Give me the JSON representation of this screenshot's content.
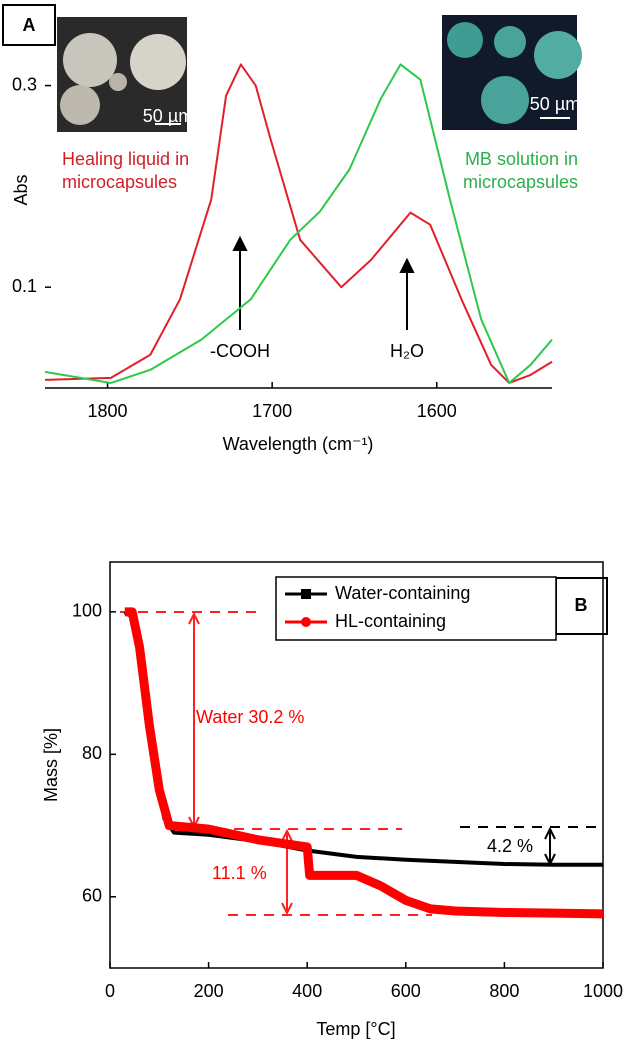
{
  "chart_data": [
    {
      "type": "line",
      "panel_label": "A",
      "xlabel": "Wavelength (cm⁻¹)",
      "ylabel": "Abs",
      "xlim": [
        1838,
        1530
      ],
      "xticks": [
        1800,
        1700,
        1600
      ],
      "ylim": [
        0,
        0.37
      ],
      "yticks": [
        0.1,
        0.3
      ],
      "series": [
        {
          "name": "Healing liquid in microcapsules",
          "color": "#e0202a",
          "x": [
            1838,
            1798,
            1774,
            1756,
            1737,
            1728,
            1719,
            1710,
            1701,
            1683,
            1658,
            1640,
            1616,
            1604,
            1585,
            1567,
            1556,
            1543,
            1530
          ],
          "values": [
            0.008,
            0.01,
            0.033,
            0.088,
            0.187,
            0.29,
            0.321,
            0.3,
            0.247,
            0.147,
            0.1,
            0.127,
            0.174,
            0.162,
            0.088,
            0.023,
            0.005,
            0.013,
            0.026
          ]
        },
        {
          "name": "MB solution in microcapsules",
          "color": "#2ec84a",
          "x": [
            1838,
            1798,
            1774,
            1743,
            1713,
            1700,
            1689,
            1671,
            1653,
            1634,
            1622,
            1610,
            1592,
            1573,
            1556,
            1543,
            1530
          ],
          "values": [
            0.016,
            0.005,
            0.018,
            0.048,
            0.088,
            0.12,
            0.147,
            0.175,
            0.217,
            0.287,
            0.321,
            0.306,
            0.187,
            0.068,
            0.005,
            0.023,
            0.048
          ]
        }
      ],
      "annotations": [
        "Healing liquid in",
        "microcapsules",
        "MB solution in",
        "microcapsules",
        "-COOH",
        "H₂O",
        "50 µm",
        "50 µm"
      ]
    },
    {
      "type": "line",
      "panel_label": "B",
      "xlabel": "Temp [°C]",
      "ylabel": "Mass [%]",
      "xlim": [
        0,
        1000
      ],
      "xticks": [
        0,
        200,
        400,
        600,
        800,
        1000
      ],
      "ylim": [
        50,
        107
      ],
      "yticks": [
        60,
        80,
        100
      ],
      "legend": "top-right",
      "series": [
        {
          "name": "Water-containing",
          "color": "#000000",
          "x": [
            30,
            50,
            70,
            90,
            110,
            130,
            200,
            300,
            400,
            500,
            600,
            700,
            800,
            900,
            1000
          ],
          "values": [
            100,
            99,
            92,
            80,
            71,
            69,
            68.7,
            67.8,
            66.5,
            65.6,
            65.2,
            64.9,
            64.6,
            64.5,
            64.5
          ]
        },
        {
          "name": "HL-containing",
          "color": "#ff0000",
          "x": [
            30,
            45,
            60,
            80,
            100,
            120,
            200,
            300,
            400,
            405,
            500,
            550,
            600,
            650,
            700,
            800,
            900,
            1000
          ],
          "values": [
            100,
            100,
            95,
            84,
            75,
            70,
            69.5,
            68,
            67,
            63,
            63,
            61.5,
            59.5,
            58.3,
            58,
            57.8,
            57.7,
            57.6
          ]
        }
      ],
      "annotations": [
        "Water 30.2 %",
        "11.1 %",
        "4.2 %"
      ]
    }
  ]
}
